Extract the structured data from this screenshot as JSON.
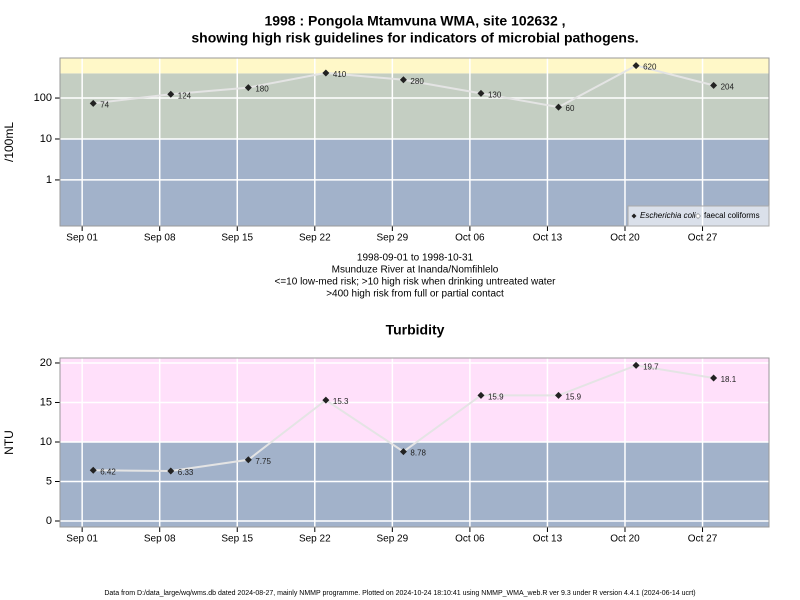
{
  "chart_data": [
    {
      "type": "line",
      "log_scale": true,
      "grid": true,
      "legend": "bottom right",
      "title": [
        "1998 : Pongola Mtamvuna WMA, site 102632 ,",
        "showing high risk guidelines for indicators of microbial pathogens."
      ],
      "ylabel": "/100mL",
      "subtitle": [
        "1998-09-01 to 1998-10-31",
        "Msunduze River at Inanda/Nomfihlelo",
        "<=10 low-med risk; >10 high risk when drinking untreated water",
        ">400 high risk from full or partial contact"
      ],
      "x": [
        "1998-09-02",
        "1998-09-09",
        "1998-09-16",
        "1998-09-23",
        "1998-09-30",
        "1998-10-07",
        "1998-10-14",
        "1998-10-21",
        "1998-10-28"
      ],
      "series": [
        {
          "name": "Escherichia coli",
          "color": "#222222",
          "values": [
            74,
            124,
            180,
            410,
            280,
            130,
            60,
            620,
            204
          ]
        },
        {
          "name": "faecal coliforms",
          "color": "#ffffff",
          "values": [
            null,
            null,
            null,
            null,
            null,
            null,
            null,
            null,
            null
          ]
        }
      ],
      "bands": [
        {
          "from": 0.075,
          "to": 10,
          "color": "#a2b2ca"
        },
        {
          "from": 10,
          "to": 400,
          "color": "#c4cec2"
        },
        {
          "from": 400,
          "to": 950,
          "color": "#fff8c8"
        }
      ],
      "xlim": [
        "1998-08-30",
        "1998-11-02"
      ],
      "xticks": [
        {
          "value": "1998-09-01",
          "label": "Sep 01"
        },
        {
          "value": "1998-09-08",
          "label": "Sep 08"
        },
        {
          "value": "1998-09-15",
          "label": "Sep 15"
        },
        {
          "value": "1998-09-22",
          "label": "Sep 22"
        },
        {
          "value": "1998-09-29",
          "label": "Sep 29"
        },
        {
          "value": "1998-10-06",
          "label": "Oct 06"
        },
        {
          "value": "1998-10-13",
          "label": "Oct 13"
        },
        {
          "value": "1998-10-20",
          "label": "Oct 20"
        },
        {
          "value": "1998-10-27",
          "label": "Oct 27"
        }
      ],
      "ylim": [
        0.075,
        950
      ],
      "yticks": [
        1,
        10,
        100
      ]
    },
    {
      "type": "line",
      "log_scale": false,
      "grid": true,
      "title": [
        "Turbidity"
      ],
      "ylabel": "NTU",
      "x": [
        "1998-09-02",
        "1998-09-09",
        "1998-09-16",
        "1998-09-23",
        "1998-09-30",
        "1998-10-07",
        "1998-10-14",
        "1998-10-21",
        "1998-10-28"
      ],
      "series": [
        {
          "name": "Turbidity",
          "color": "#222222",
          "values": [
            6.42,
            6.33,
            7.75,
            15.3,
            8.78,
            15.9,
            15.9,
            19.7,
            18.1
          ]
        }
      ],
      "bands": [
        {
          "from": -0.76,
          "to": 10,
          "color": "#a2b2ca"
        },
        {
          "from": 10,
          "to": 20.63,
          "color": "#ffe0fa"
        }
      ],
      "xlim": [
        "1998-08-30",
        "1998-11-02"
      ],
      "xticks": [
        {
          "value": "1998-09-01",
          "label": "Sep 01"
        },
        {
          "value": "1998-09-08",
          "label": "Sep 08"
        },
        {
          "value": "1998-09-15",
          "label": "Sep 15"
        },
        {
          "value": "1998-09-22",
          "label": "Sep 22"
        },
        {
          "value": "1998-09-29",
          "label": "Sep 29"
        },
        {
          "value": "1998-10-06",
          "label": "Oct 06"
        },
        {
          "value": "1998-10-13",
          "label": "Oct 13"
        },
        {
          "value": "1998-10-20",
          "label": "Oct 20"
        },
        {
          "value": "1998-10-27",
          "label": "Oct 27"
        }
      ],
      "ylim": [
        -0.76,
        20.63
      ],
      "yticks": [
        0,
        5,
        10,
        15,
        20
      ]
    }
  ],
  "footer": "Data from D:/data_large/wq/wms.db dated 2024-08-27, mainly NMMP programme. Plotted on 2024-10-24 18:10:41 using NMMP_WMA_web.R ver 9.3 under R version 4.4.1 (2024-06-14 ucrt)"
}
